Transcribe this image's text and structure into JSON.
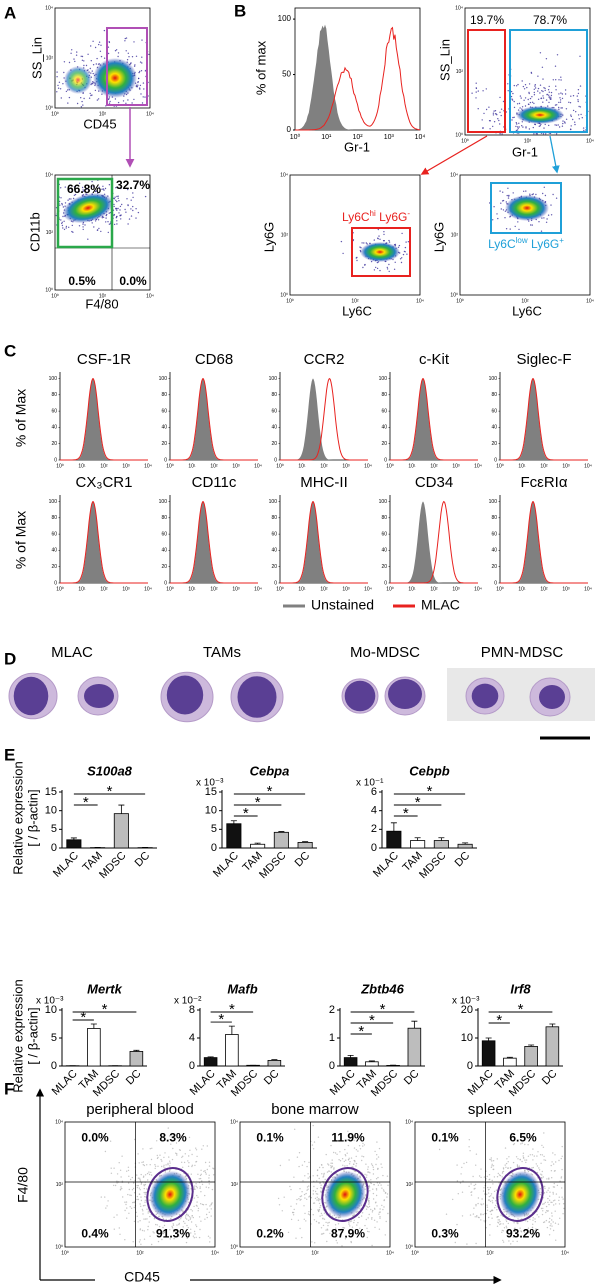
{
  "log_ticks": [
    "10⁰",
    "10¹",
    "10²",
    "10³",
    "10⁴"
  ],
  "panel_a": {
    "letter": "A",
    "top": {
      "ylabel": "SS_Lin",
      "xlabel": "CD45"
    },
    "bottom": {
      "ylabel": "CD11b",
      "xlabel": "F4/80",
      "quadrants": [
        "66.8%",
        "32.7%",
        "0.5%",
        "0.0%"
      ]
    }
  },
  "panel_b": {
    "letter": "B",
    "histogram": {
      "ylabel": "% of max",
      "xlabel": "Gr-1",
      "ylim": [
        0,
        110
      ],
      "yticks": [
        0,
        50,
        100
      ]
    },
    "scatter": {
      "ylabel": "SS_Lin",
      "xlabel": "Gr-1",
      "gates": [
        "19.7%",
        "78.7%"
      ]
    },
    "ly6c_hi": {
      "ylabel": "Ly6G",
      "xlabel": "Ly6C",
      "gate": [
        "Ly6C",
        "hi",
        " Ly6G",
        "-"
      ]
    },
    "ly6c_low": {
      "ylabel": "Ly6G",
      "xlabel": "Ly6C",
      "gate": [
        "Ly6C",
        "low",
        " Ly6G",
        "+"
      ]
    }
  },
  "panel_c": {
    "letter": "C",
    "ylabel": "% of Max",
    "ylim": [
      0,
      108
    ],
    "yticks": [
      0,
      20,
      40,
      60,
      80,
      100
    ],
    "markers": [
      "CSF-1R",
      "CD68",
      "CCR2",
      "c-Kit",
      "Siglec-F",
      "CX₃CR1",
      "CD11c",
      "MHC-II",
      "CD34",
      "FcεRIα"
    ],
    "legend": [
      {
        "name": "Unstained",
        "color": "#808080"
      },
      {
        "name": "MLAC",
        "color": "#e8221f"
      }
    ]
  },
  "panel_d": {
    "letter": "D",
    "labels": [
      "MLAC",
      "TAMs",
      "Mo-MDSC",
      "PMN-MDSC"
    ]
  },
  "panel_e": {
    "letter": "E",
    "ylabel": [
      "Relative expression",
      "[ / β-actin]"
    ],
    "star": "*",
    "categories": [
      "MLAC",
      "TAM",
      "MDSC",
      "DC"
    ],
    "colors": [
      "#111111",
      "#ffffff",
      "#bdbdbd",
      "#bdbdbd"
    ],
    "charts": [
      {
        "title": "S100a8",
        "ylim": [
          0,
          15
        ],
        "yticks": [
          0,
          5,
          10,
          15
        ],
        "values": [
          2.2,
          0.1,
          9.2,
          0.1
        ],
        "errors": [
          0.5,
          0.05,
          2.3,
          0.05
        ]
      },
      {
        "title": "Cebpa",
        "scale": "x 10⁻³",
        "ylim": [
          0,
          15
        ],
        "yticks": [
          0,
          5,
          10,
          15
        ],
        "values": [
          6.5,
          1.0,
          4.2,
          1.5
        ],
        "errors": [
          0.8,
          0.3,
          0.2,
          0.2
        ]
      },
      {
        "title": "Cebpb",
        "scale": "x 10⁻¹",
        "ylim": [
          0,
          6
        ],
        "yticks": [
          0,
          2,
          4,
          6
        ],
        "values": [
          1.8,
          0.8,
          0.8,
          0.4
        ],
        "errors": [
          0.9,
          0.3,
          0.3,
          0.15
        ]
      },
      {
        "title": "Mertk",
        "scale": "x 10⁻³",
        "ylim": [
          0,
          10
        ],
        "yticks": [
          0,
          5,
          10
        ],
        "values": [
          0.05,
          6.7,
          0.05,
          2.6
        ],
        "errors": [
          0,
          0.8,
          0,
          0.2
        ]
      },
      {
        "title": "Mafb",
        "scale": "x 10⁻²",
        "ylim": [
          0,
          8
        ],
        "yticks": [
          0,
          4,
          8
        ],
        "values": [
          1.2,
          4.5,
          0.1,
          0.8
        ],
        "errors": [
          0.1,
          1.2,
          0,
          0.1
        ]
      },
      {
        "title": "Zbtb46",
        "ylim": [
          0,
          2
        ],
        "yticks": [
          0,
          1,
          2
        ],
        "values": [
          0.3,
          0.15,
          0.02,
          1.35
        ],
        "errors": [
          0.08,
          0.03,
          0.01,
          0.25
        ]
      },
      {
        "title": "Irf8",
        "scale": "x 10⁻³",
        "ylim": [
          0,
          20
        ],
        "yticks": [
          0,
          10,
          20
        ],
        "values": [
          9,
          2.8,
          7,
          14
        ],
        "errors": [
          1,
          0.3,
          0.5,
          1
        ]
      }
    ]
  },
  "panel_f": {
    "letter": "F",
    "ylabel": "F4/80",
    "xlabel": "CD45",
    "plots": [
      {
        "title": "peripheral blood",
        "quadrants": [
          "0.0%",
          "8.3%",
          "0.4%",
          "91.3%"
        ]
      },
      {
        "title": "bone marrow",
        "quadrants": [
          "0.1%",
          "11.9%",
          "0.2%",
          "87.9%"
        ]
      },
      {
        "title": "spleen",
        "quadrants": [
          "0.1%",
          "6.5%",
          "0.3%",
          "93.2%"
        ]
      }
    ]
  }
}
